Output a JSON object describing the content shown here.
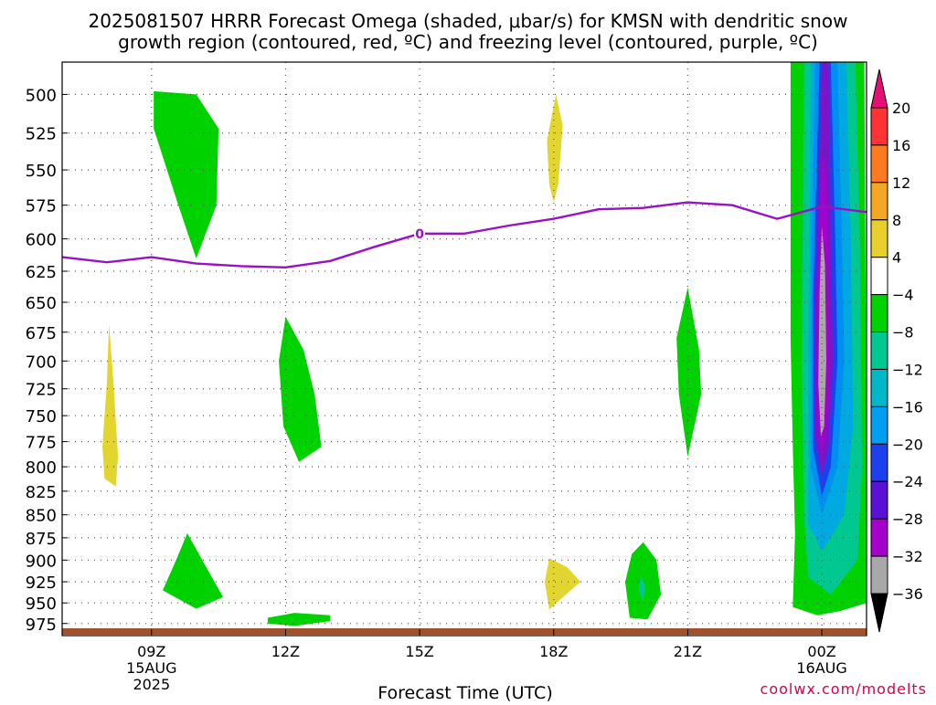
{
  "title_line1": "2025081507 HRRR Forecast Omega (shaded, μbar/s) for KMSN with dendritic snow",
  "title_line2": "growth region (contoured, red, ºC) and freezing level (contoured, purple, ºC)",
  "credit": "coolwx.com/modelts",
  "colors": {
    "freezing_line": "#9a10c8",
    "ground": "#a0522d",
    "grid": "#555555"
  },
  "chart_data": {
    "type": "heatmap",
    "title": "2025081507 HRRR Forecast Omega (shaded, μbar/s) for KMSN with dendritic snow growth region (contoured, red, ºC) and freezing level (contoured, purple, ºC)",
    "xlabel": "Forecast Time (UTC)",
    "ylabel": "",
    "xlim_hours": [
      7,
      25
    ],
    "ylim_hpa": [
      990,
      480
    ],
    "yscale": "log-pressure",
    "grid": true,
    "x_ticks": [
      {
        "hour": 9,
        "label": "09Z",
        "sub1": "15AUG",
        "sub2": "2025"
      },
      {
        "hour": 12,
        "label": "12Z",
        "sub1": "",
        "sub2": ""
      },
      {
        "hour": 15,
        "label": "15Z",
        "sub1": "",
        "sub2": ""
      },
      {
        "hour": 18,
        "label": "18Z",
        "sub1": "",
        "sub2": ""
      },
      {
        "hour": 21,
        "label": "21Z",
        "sub1": "",
        "sub2": ""
      },
      {
        "hour": 24,
        "label": "00Z",
        "sub1": "16AUG",
        "sub2": ""
      }
    ],
    "y_ticks": [
      500,
      525,
      550,
      575,
      600,
      625,
      650,
      675,
      700,
      725,
      750,
      775,
      800,
      825,
      850,
      875,
      900,
      925,
      950,
      975
    ],
    "freezing_level": {
      "label": "0",
      "label_at": {
        "hour": 15,
        "p": 596
      },
      "points": [
        [
          7.0,
          614
        ],
        [
          8.0,
          618
        ],
        [
          9.0,
          614
        ],
        [
          10.0,
          619
        ],
        [
          11.0,
          621
        ],
        [
          12.0,
          622
        ],
        [
          13.0,
          617
        ],
        [
          14.0,
          606
        ],
        [
          15.0,
          596
        ],
        [
          16.0,
          596
        ],
        [
          17.0,
          590
        ],
        [
          18.0,
          585
        ],
        [
          19.0,
          578
        ],
        [
          20.0,
          577
        ],
        [
          21.0,
          573
        ],
        [
          22.0,
          575
        ],
        [
          23.0,
          585
        ],
        [
          24.0,
          576
        ],
        [
          25.0,
          580
        ]
      ]
    },
    "omega_regions": [
      {
        "level": "-8",
        "color": "#00d200",
        "points": [
          [
            9.05,
            498
          ],
          [
            10.0,
            500
          ],
          [
            10.5,
            522
          ],
          [
            10.45,
            575
          ],
          [
            10.0,
            615
          ],
          [
            9.6,
            575
          ],
          [
            9.05,
            522
          ]
        ]
      },
      {
        "level": "4",
        "color": "#e2d530",
        "points": [
          [
            8.05,
            668
          ],
          [
            8.15,
            720
          ],
          [
            8.25,
            790
          ],
          [
            8.2,
            820
          ],
          [
            7.95,
            812
          ],
          [
            7.9,
            780
          ],
          [
            8.0,
            720
          ]
        ]
      },
      {
        "level": "-8",
        "color": "#00d200",
        "points": [
          [
            12.0,
            662
          ],
          [
            12.4,
            690
          ],
          [
            12.65,
            730
          ],
          [
            12.8,
            780
          ],
          [
            12.3,
            795
          ],
          [
            11.95,
            760
          ],
          [
            11.85,
            700
          ]
        ]
      },
      {
        "level": "-8",
        "color": "#00d200",
        "points": [
          [
            9.8,
            870
          ],
          [
            10.3,
            915
          ],
          [
            10.6,
            943
          ],
          [
            10.0,
            957
          ],
          [
            9.25,
            935
          ],
          [
            9.55,
            900
          ]
        ]
      },
      {
        "level": "-8",
        "color": "#00d200",
        "points": [
          [
            11.6,
            968
          ],
          [
            12.2,
            962
          ],
          [
            13.0,
            965
          ],
          [
            13.0,
            972
          ],
          [
            12.2,
            978
          ],
          [
            11.6,
            975
          ]
        ]
      },
      {
        "level": "4",
        "color": "#e2d530",
        "points": [
          [
            17.85,
            530
          ],
          [
            18.05,
            500
          ],
          [
            18.2,
            520
          ],
          [
            18.1,
            560
          ],
          [
            18.0,
            573
          ],
          [
            17.9,
            560
          ]
        ]
      },
      {
        "level": "4",
        "color": "#e2d530",
        "points": [
          [
            17.9,
            898
          ],
          [
            18.3,
            908
          ],
          [
            18.6,
            925
          ],
          [
            18.1,
            948
          ],
          [
            17.9,
            958
          ],
          [
            17.8,
            925
          ]
        ]
      },
      {
        "level": "-8",
        "color": "#00d200",
        "points": [
          [
            20.0,
            880
          ],
          [
            20.3,
            900
          ],
          [
            20.4,
            940
          ],
          [
            20.1,
            970
          ],
          [
            19.7,
            968
          ],
          [
            19.6,
            925
          ],
          [
            19.75,
            893
          ]
        ]
      },
      {
        "level": "-12",
        "color": "#00c890",
        "points": [
          [
            19.95,
            918
          ],
          [
            20.05,
            930
          ],
          [
            20.0,
            948
          ],
          [
            19.9,
            935
          ]
        ]
      },
      {
        "level": "-8",
        "color": "#00d200",
        "points": [
          [
            21.0,
            638
          ],
          [
            21.25,
            690
          ],
          [
            21.3,
            730
          ],
          [
            21.0,
            790
          ],
          [
            20.8,
            730
          ],
          [
            20.75,
            680
          ]
        ]
      },
      {
        "level": "4",
        "color": "#e2d530",
        "points": [
          [
            23.4,
            480
          ],
          [
            23.6,
            480
          ],
          [
            23.8,
            550
          ],
          [
            23.85,
            600
          ],
          [
            23.75,
            614
          ],
          [
            23.5,
            580
          ],
          [
            23.4,
            530
          ]
        ]
      },
      {
        "level": "-8",
        "color": "#00d200",
        "points": [
          [
            23.3,
            480
          ],
          [
            24.95,
            480
          ],
          [
            25.0,
            800
          ],
          [
            25.0,
            950
          ],
          [
            24.4,
            960
          ],
          [
            23.9,
            965
          ],
          [
            23.35,
            955
          ],
          [
            23.4,
            870
          ],
          [
            23.35,
            780
          ],
          [
            23.3,
            680
          ]
        ]
      },
      {
        "level": "-12",
        "color": "#00c890",
        "points": [
          [
            23.6,
            480
          ],
          [
            24.75,
            480
          ],
          [
            24.85,
            600
          ],
          [
            24.9,
            800
          ],
          [
            24.8,
            900
          ],
          [
            24.2,
            940
          ],
          [
            23.7,
            920
          ],
          [
            23.6,
            850
          ],
          [
            23.55,
            700
          ]
        ]
      },
      {
        "level": "-16",
        "color": "#00aae0",
        "points": [
          [
            23.75,
            480
          ],
          [
            24.55,
            480
          ],
          [
            24.65,
            600
          ],
          [
            24.7,
            760
          ],
          [
            24.5,
            850
          ],
          [
            24.0,
            890
          ],
          [
            23.7,
            860
          ],
          [
            23.7,
            700
          ]
        ]
      },
      {
        "level": "-20",
        "color": "#008ef0",
        "points": [
          [
            23.85,
            480
          ],
          [
            24.35,
            480
          ],
          [
            24.45,
            600
          ],
          [
            24.5,
            700
          ],
          [
            24.35,
            800
          ],
          [
            24.0,
            850
          ],
          [
            23.75,
            800
          ],
          [
            23.75,
            650
          ]
        ]
      },
      {
        "level": "-24",
        "color": "#1d40ee",
        "points": [
          [
            23.95,
            480
          ],
          [
            24.2,
            480
          ],
          [
            24.3,
            600
          ],
          [
            24.35,
            700
          ],
          [
            24.2,
            800
          ],
          [
            24.0,
            830
          ],
          [
            23.8,
            780
          ],
          [
            23.8,
            650
          ]
        ]
      },
      {
        "level": "-28",
        "color": "#7b14c8",
        "points": [
          [
            24.0,
            480
          ],
          [
            24.15,
            480
          ],
          [
            24.2,
            600
          ],
          [
            24.25,
            700
          ],
          [
            24.15,
            780
          ],
          [
            24.0,
            810
          ],
          [
            23.85,
            770
          ],
          [
            23.85,
            650
          ]
        ]
      },
      {
        "level": "-32",
        "color": "#a600cc",
        "points": [
          [
            24.02,
            540
          ],
          [
            24.1,
            560
          ],
          [
            24.15,
            650
          ],
          [
            24.15,
            740
          ],
          [
            24.0,
            790
          ],
          [
            23.9,
            750
          ],
          [
            23.9,
            650
          ]
        ]
      },
      {
        "level": "-36",
        "color": "#a8a8a8",
        "points": [
          [
            24.0,
            590
          ],
          [
            24.07,
            620
          ],
          [
            24.1,
            700
          ],
          [
            24.05,
            760
          ],
          [
            23.98,
            770
          ],
          [
            23.92,
            720
          ],
          [
            23.95,
            640
          ]
        ]
      }
    ],
    "colorbar": {
      "labels": [
        "20",
        "16",
        "12",
        "8",
        "4",
        "−4",
        "−8",
        "−12",
        "−16",
        "−20",
        "−24",
        "−28",
        "−32",
        "−36"
      ],
      "colors": [
        "#e51073",
        "#ff3333",
        "#ff7a1e",
        "#f5a623",
        "#e7cf2c",
        "#ffffff",
        "#00d200",
        "#00c890",
        "#00b8c8",
        "#009ef0",
        "#1d40ee",
        "#5a10d6",
        "#a600cc",
        "#a8a8a8",
        "#000000"
      ]
    }
  }
}
